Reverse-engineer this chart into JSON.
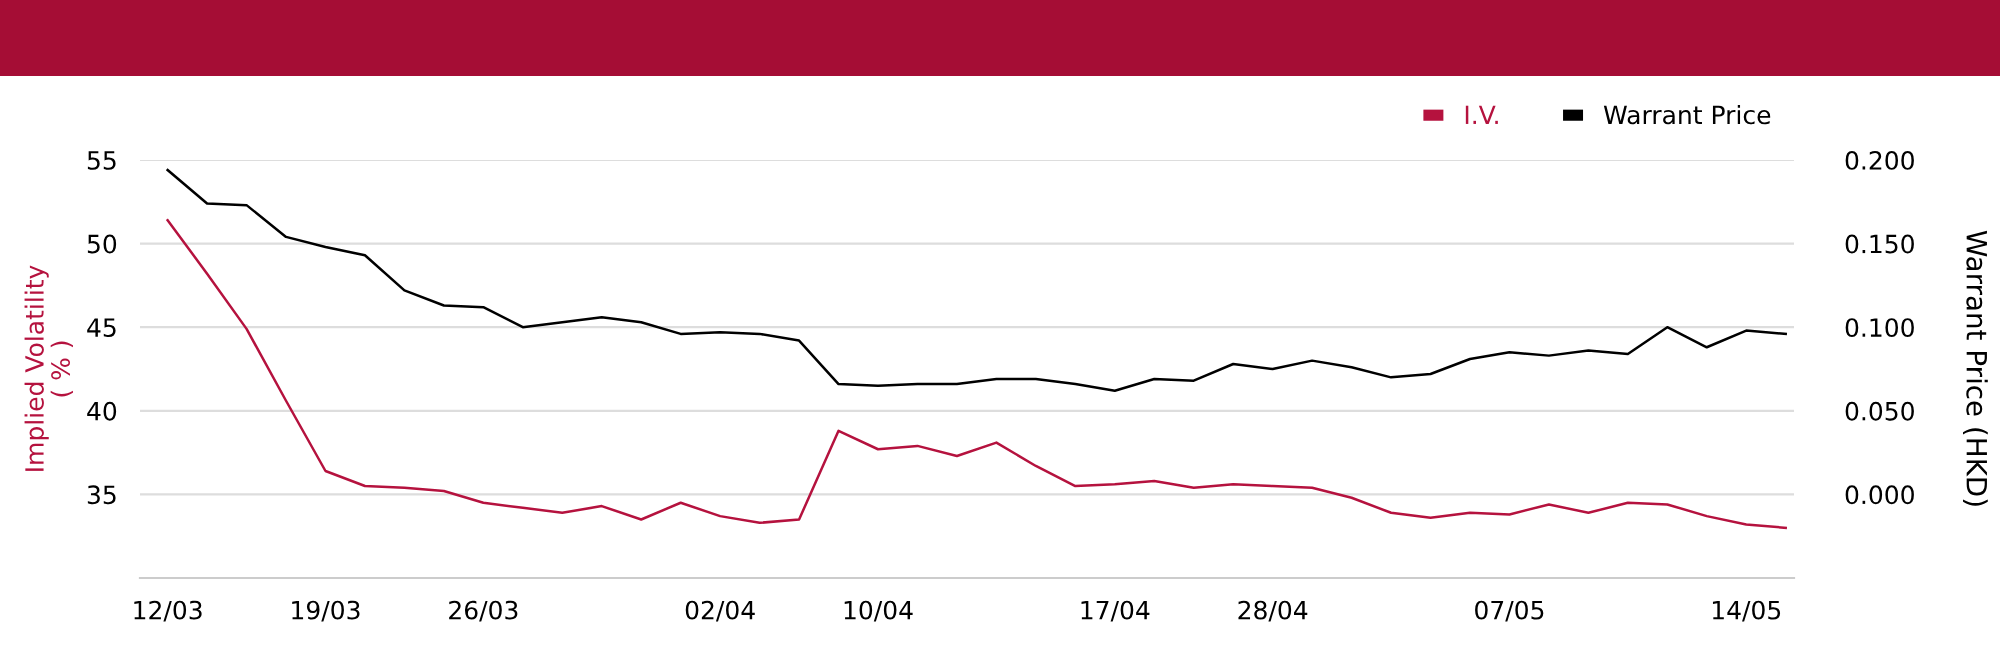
{
  "chart_data": {
    "type": "line",
    "categories": [
      "12/03",
      null,
      null,
      null,
      "19/03",
      null,
      null,
      null,
      "26/03",
      null,
      null,
      null,
      null,
      null,
      "02/04",
      null,
      null,
      null,
      "10/04",
      null,
      null,
      null,
      null,
      null,
      "17/04",
      null,
      null,
      null,
      "28/04",
      null,
      null,
      null,
      null,
      null,
      "07/05",
      null,
      null,
      null,
      null,
      null,
      "14/05",
      null
    ],
    "series": [
      {
        "name": "I.V.",
        "color": "#b5123e",
        "values": [
          51.4,
          48.2,
          44.9,
          40.6,
          36.4,
          35.5,
          35.4,
          35.2,
          34.5,
          34.2,
          33.9,
          34.3,
          33.5,
          34.5,
          33.7,
          33.3,
          33.5,
          38.8,
          37.7,
          37.9,
          37.3,
          38.1,
          36.7,
          35.5,
          35.6,
          35.8,
          35.4,
          35.6,
          35.5,
          35.4,
          34.8,
          33.9,
          33.6,
          33.9,
          33.8,
          34.4,
          33.9,
          34.5,
          34.4,
          33.7,
          33.2,
          33.0
        ]
      },
      {
        "name": "Warrant Price",
        "color": "#000000",
        "axis": "y2",
        "values": [
          0.194,
          0.174,
          0.173,
          0.154,
          0.148,
          0.143,
          0.122,
          0.113,
          0.112,
          0.1,
          0.103,
          0.106,
          0.103,
          0.096,
          0.097,
          0.096,
          0.092,
          0.066,
          0.065,
          0.066,
          0.066,
          0.069,
          0.069,
          0.066,
          0.062,
          0.069,
          0.068,
          0.078,
          0.075,
          0.08,
          0.076,
          0.07,
          0.072,
          0.081,
          0.085,
          0.083,
          0.086,
          0.084,
          0.1,
          0.088,
          0.098,
          0.096
        ]
      }
    ],
    "ylabel": "Implied Volatility\n( % )",
    "y2label": "Warrant Price (HKD)",
    "ylim": [
      30,
      55
    ],
    "yticks": [
      35,
      40,
      45,
      50,
      55
    ],
    "y2lim": [
      -0.05,
      0.2
    ],
    "y2ticks": [
      {
        "value": 0,
        "label": "0.000"
      },
      {
        "value": 0.05,
        "label": "0.050"
      },
      {
        "value": 0.1,
        "label": "0.100"
      },
      {
        "value": 0.15,
        "label": "0.150"
      },
      {
        "value": 0.2,
        "label": "0.200"
      }
    ],
    "grid": "y",
    "legend": "top right"
  }
}
